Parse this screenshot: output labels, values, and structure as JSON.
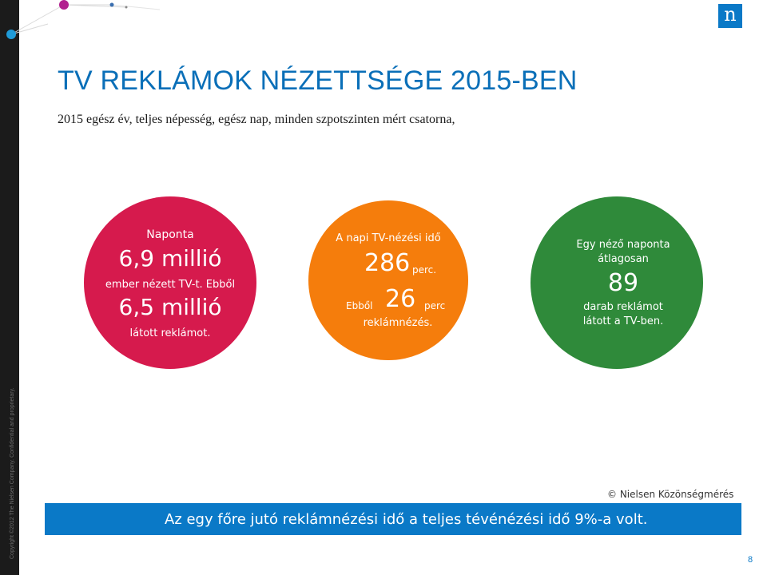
{
  "header": {
    "title": "TV REKLÁMOK NÉZETTSÉGE 2015-BEN",
    "subtitle": "2015 egész év, teljes népesség, egész nap, minden szpotszinten mért csatorna,"
  },
  "logo": {
    "letter": "n"
  },
  "circles": {
    "red": {
      "label_top": "Naponta",
      "value1": "6,9 millió",
      "line2": "ember nézett TV-t. Ebből",
      "value2": "6,5 millió",
      "line3": "látott reklámot."
    },
    "orange": {
      "label_top": "A napi TV-nézési idő",
      "value1": "286",
      "unit1": "perc.",
      "prefix2": "Ebből",
      "value2": "26",
      "unit2": "perc",
      "line3": "reklámnézés."
    },
    "green": {
      "line1": "Egy néző naponta",
      "line2": "átlagosan",
      "value": "89",
      "line3": "darab reklámot",
      "line4": "látott a TV-ben."
    }
  },
  "footer": {
    "source": "© Nielsen Közönségmérés",
    "highlight": "Az egy főre jutó reklámnézési idő a teljes tévénézési idő 9%-a volt.",
    "copyright": "Copyright ©2012 The Nielsen Company. Confidential and proprietary.",
    "page_number": "8"
  },
  "colors": {
    "brand_blue": "#0a79c7",
    "red": "#d61a4d",
    "orange": "#f57d0c",
    "green": "#2f8a3a"
  }
}
